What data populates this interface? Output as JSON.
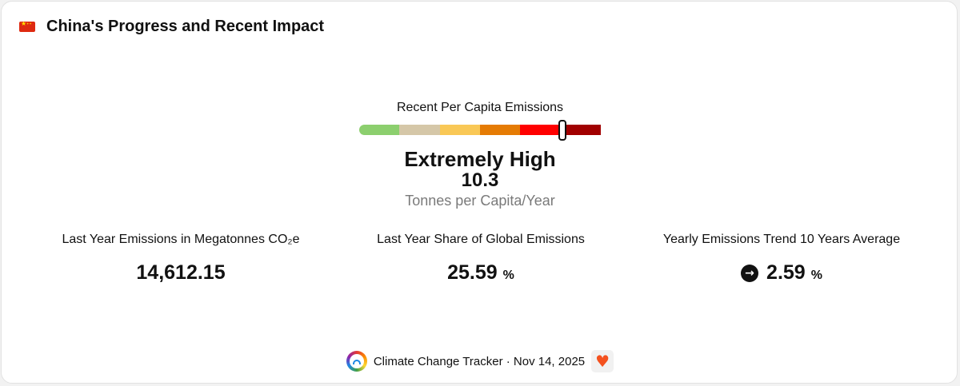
{
  "header": {
    "flag_icon": "china-flag-icon",
    "title": "China's Progress and Recent Impact"
  },
  "gauge": {
    "label": "Recent Per Capita Emissions",
    "segment_colors": [
      "#8ccf6e",
      "#d5c7a8",
      "#f9c856",
      "#e57b04",
      "#ff0000",
      "#a10000"
    ],
    "marker_fraction": 0.84,
    "level": "Extremely High",
    "value": "10.3",
    "unit": "Tonnes per Capita/Year"
  },
  "stats": {
    "last_year_emissions": {
      "label": "Last Year Emissions in Megatonnes CO₂e",
      "value": "14,612.15"
    },
    "share_global": {
      "label": "Last Year Share of Global Emissions",
      "value": "25.59",
      "unit": "%"
    },
    "trend": {
      "label": "Yearly Emissions Trend 10 Years Average",
      "icon": "arrow-right-circle-icon",
      "value": "2.59",
      "unit": "%"
    }
  },
  "footer": {
    "logo_icon": "climate-change-tracker-logo-icon",
    "text": "Climate Change Tracker · Nov 14, 2025",
    "heart_icon": "heart-icon"
  }
}
